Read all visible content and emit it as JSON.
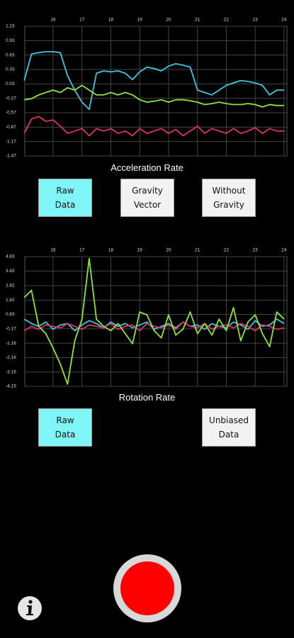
{
  "chart_data": [
    {
      "type": "line",
      "title": "Acceleration Rate",
      "x": [
        15,
        15.25,
        15.5,
        15.75,
        16,
        16.25,
        16.5,
        16.75,
        17,
        17.25,
        17.5,
        17.75,
        18,
        18.25,
        18.5,
        18.75,
        19,
        19.25,
        19.5,
        19.75,
        20,
        20.25,
        20.5,
        20.75,
        21,
        21.25,
        21.5,
        21.75,
        22,
        22.25,
        22.5,
        22.75,
        23,
        23.25,
        23.5,
        23.75,
        24
      ],
      "series": [
        {
          "color": "#3ec6e0",
          "values": [
            0.1,
            0.65,
            0.68,
            0.7,
            0.7,
            0.68,
            0.2,
            -0.1,
            -0.35,
            -0.5,
            0.25,
            0.3,
            0.28,
            0.3,
            0.25,
            0.12,
            0.28,
            0.38,
            0.35,
            0.3,
            0.4,
            0.45,
            0.42,
            0.38,
            -0.1,
            -0.15,
            -0.2,
            -0.1,
            0.0,
            0.05,
            0.1,
            0.08,
            0.05,
            0.0,
            -0.2,
            -0.1,
            -0.1
          ]
        },
        {
          "color": "#8fe33a",
          "values": [
            -0.3,
            -0.28,
            -0.2,
            -0.15,
            -0.1,
            -0.15,
            -0.05,
            -0.1,
            0.0,
            -0.1,
            -0.2,
            -0.2,
            -0.15,
            -0.2,
            -0.15,
            -0.2,
            -0.3,
            -0.35,
            -0.33,
            -0.3,
            -0.35,
            -0.3,
            -0.3,
            -0.32,
            -0.35,
            -0.4,
            -0.38,
            -0.35,
            -0.38,
            -0.4,
            -0.4,
            -0.38,
            -0.4,
            -0.45,
            -0.4,
            -0.42,
            -0.42
          ]
        },
        {
          "color": "#e0306e",
          "values": [
            -1.0,
            -0.7,
            -0.65,
            -0.75,
            -0.72,
            -0.85,
            -1.0,
            -0.95,
            -0.9,
            -1.05,
            -0.9,
            -0.95,
            -0.9,
            -1.0,
            -0.95,
            -1.05,
            -0.9,
            -1.0,
            -0.95,
            -0.9,
            -1.0,
            -0.92,
            -1.05,
            -0.95,
            -0.85,
            -1.0,
            -0.9,
            -0.95,
            -1.0,
            -0.9,
            -1.0,
            -0.95,
            -0.88,
            -1.0,
            -0.9,
            -0.95,
            -0.95
          ]
        }
      ],
      "xlim": [
        15.02,
        24.1
      ],
      "xticks": [
        16,
        17,
        18,
        19,
        20,
        21,
        22,
        23,
        24
      ],
      "ylim": [
        -1.47,
        1.23
      ],
      "yticks": [
        1.23,
        0.93,
        0.63,
        0.33,
        0.03,
        -0.27,
        -0.57,
        -0.87,
        -1.17,
        -1.47
      ],
      "grid": true
    },
    {
      "type": "line",
      "title": "Rotation Rate",
      "x": [
        15,
        15.25,
        15.5,
        15.75,
        16,
        16.25,
        16.5,
        16.75,
        17,
        17.25,
        17.5,
        17.75,
        18,
        18.25,
        18.5,
        18.75,
        19,
        19.25,
        19.5,
        19.75,
        20,
        20.25,
        20.5,
        20.75,
        21,
        21.25,
        21.5,
        21.75,
        22,
        22.25,
        22.5,
        22.75,
        23,
        23.25,
        23.5,
        23.75,
        24
      ],
      "series": [
        {
          "color": "#3ec6e0",
          "values": [
            0.5,
            0.2,
            0.0,
            0.3,
            -0.2,
            0.1,
            0.2,
            -0.3,
            0.1,
            0.4,
            0.2,
            -0.1,
            0.3,
            0.0,
            0.2,
            -0.1,
            0.1,
            0.3,
            -0.2,
            0.0,
            0.2,
            -0.1,
            0.3,
            0.0,
            0.1,
            -0.2,
            0.2,
            0.0,
            -0.1,
            0.3,
            0.1,
            -0.2,
            0.4,
            0.0,
            0.1,
            0.5,
            0.2
          ]
        },
        {
          "color": "#e0306e",
          "values": [
            -0.3,
            0.0,
            -0.2,
            0.1,
            0.0,
            -0.1,
            0.2,
            0.0,
            -0.2,
            0.1,
            0.0,
            -0.1,
            0.2,
            -0.2,
            0.0,
            0.1,
            -0.3,
            0.2,
            0.0,
            -0.1,
            0.1,
            -0.2,
            0.3,
            0.0,
            -0.1,
            0.2,
            -0.2,
            0.0,
            0.1,
            -0.1,
            0.2,
            0.0,
            -0.3,
            0.1,
            0.0,
            -0.2,
            -0.1
          ]
        },
        {
          "color": "#8fe33a",
          "values": [
            2.0,
            2.5,
            0.0,
            -0.5,
            -1.5,
            -2.6,
            -4.0,
            -1.0,
            0.5,
            4.7,
            0.5,
            0.0,
            -0.3,
            0.2,
            -0.5,
            -1.2,
            1.0,
            0.8,
            -0.3,
            -0.8,
            0.8,
            -0.6,
            -0.2,
            1.0,
            -0.5,
            0.2,
            -0.6,
            0.5,
            -0.3,
            1.3,
            -1.0,
            0.3,
            0.8,
            -0.5,
            -1.4,
            1.0,
            0.5
          ]
        }
      ],
      "xlim": [
        15.02,
        24.1
      ],
      "xticks": [
        16,
        17,
        18,
        19,
        20,
        21,
        22,
        23,
        24
      ],
      "ylim": [
        -4.15,
        4.83
      ],
      "yticks": [
        4.83,
        3.83,
        2.82,
        1.82,
        0.83,
        -0.17,
        -1.16,
        -2.16,
        -3.16,
        -4.15
      ],
      "grid": true
    }
  ],
  "acceleration_buttons": [
    {
      "label": "Raw Data",
      "selected": true
    },
    {
      "label": "Gravity Vector",
      "selected": false
    },
    {
      "label": "Without Gravity",
      "selected": false
    }
  ],
  "rotation_buttons": [
    {
      "label": "Raw Data",
      "selected": true
    },
    {
      "label": "Unbiased Data",
      "selected": false
    }
  ]
}
